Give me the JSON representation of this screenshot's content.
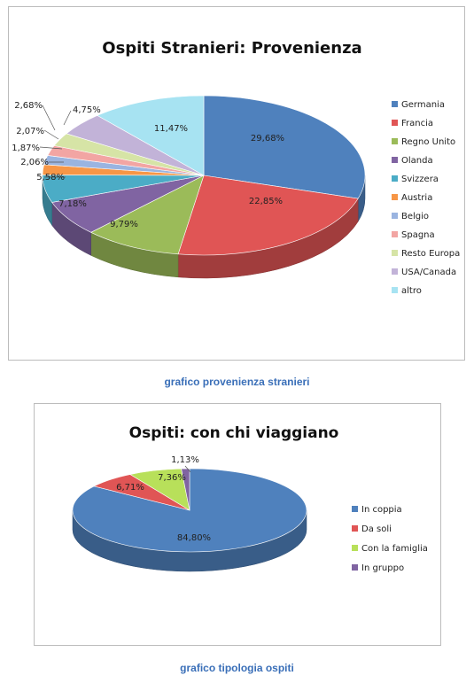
{
  "captions": {
    "chart1": "grafico provenienza stranieri",
    "chart2": "grafico tipologia ospiti"
  },
  "chart_data": [
    {
      "type": "pie",
      "title": "Ospiti Stranieri: Provenienza",
      "categories": [
        "Germania",
        "Francia",
        "Regno Unito",
        "Olanda",
        "Svizzera",
        "Austria",
        "Belgio",
        "Spagna",
        "Resto Europa",
        "USA/Canada",
        "altro"
      ],
      "values": [
        29.68,
        22.85,
        9.79,
        7.18,
        5.58,
        2.06,
        1.87,
        2.07,
        2.68,
        4.75,
        11.47
      ],
      "data_labels": [
        "29,68%",
        "22,85%",
        "9,79%",
        "7,18%",
        "5,58%",
        "2,06%",
        "1,87%",
        "2,07%",
        "2,68%",
        "4,75%",
        "11,47%"
      ],
      "colors": [
        "#4f81bd",
        "#e05555",
        "#9bbb59",
        "#8064a2",
        "#4bacc6",
        "#f79646",
        "#9ab4e0",
        "#f2a5a3",
        "#d6e4a6",
        "#c2b3d8",
        "#a7e3f2"
      ],
      "legend_position": "right",
      "style": "3d"
    },
    {
      "type": "pie",
      "title": "Ospiti: con chi viaggiano",
      "categories": [
        "In coppia",
        "Da soli",
        "Con la famiglia",
        "In gruppo"
      ],
      "values": [
        84.8,
        6.71,
        7.36,
        1.13
      ],
      "data_labels": [
        "84,80%",
        "6,71%",
        "7,36%",
        "1,13%"
      ],
      "colors": [
        "#4f81bd",
        "#e05555",
        "#b8e05a",
        "#8064a2"
      ],
      "legend_position": "right",
      "style": "3d"
    }
  ]
}
